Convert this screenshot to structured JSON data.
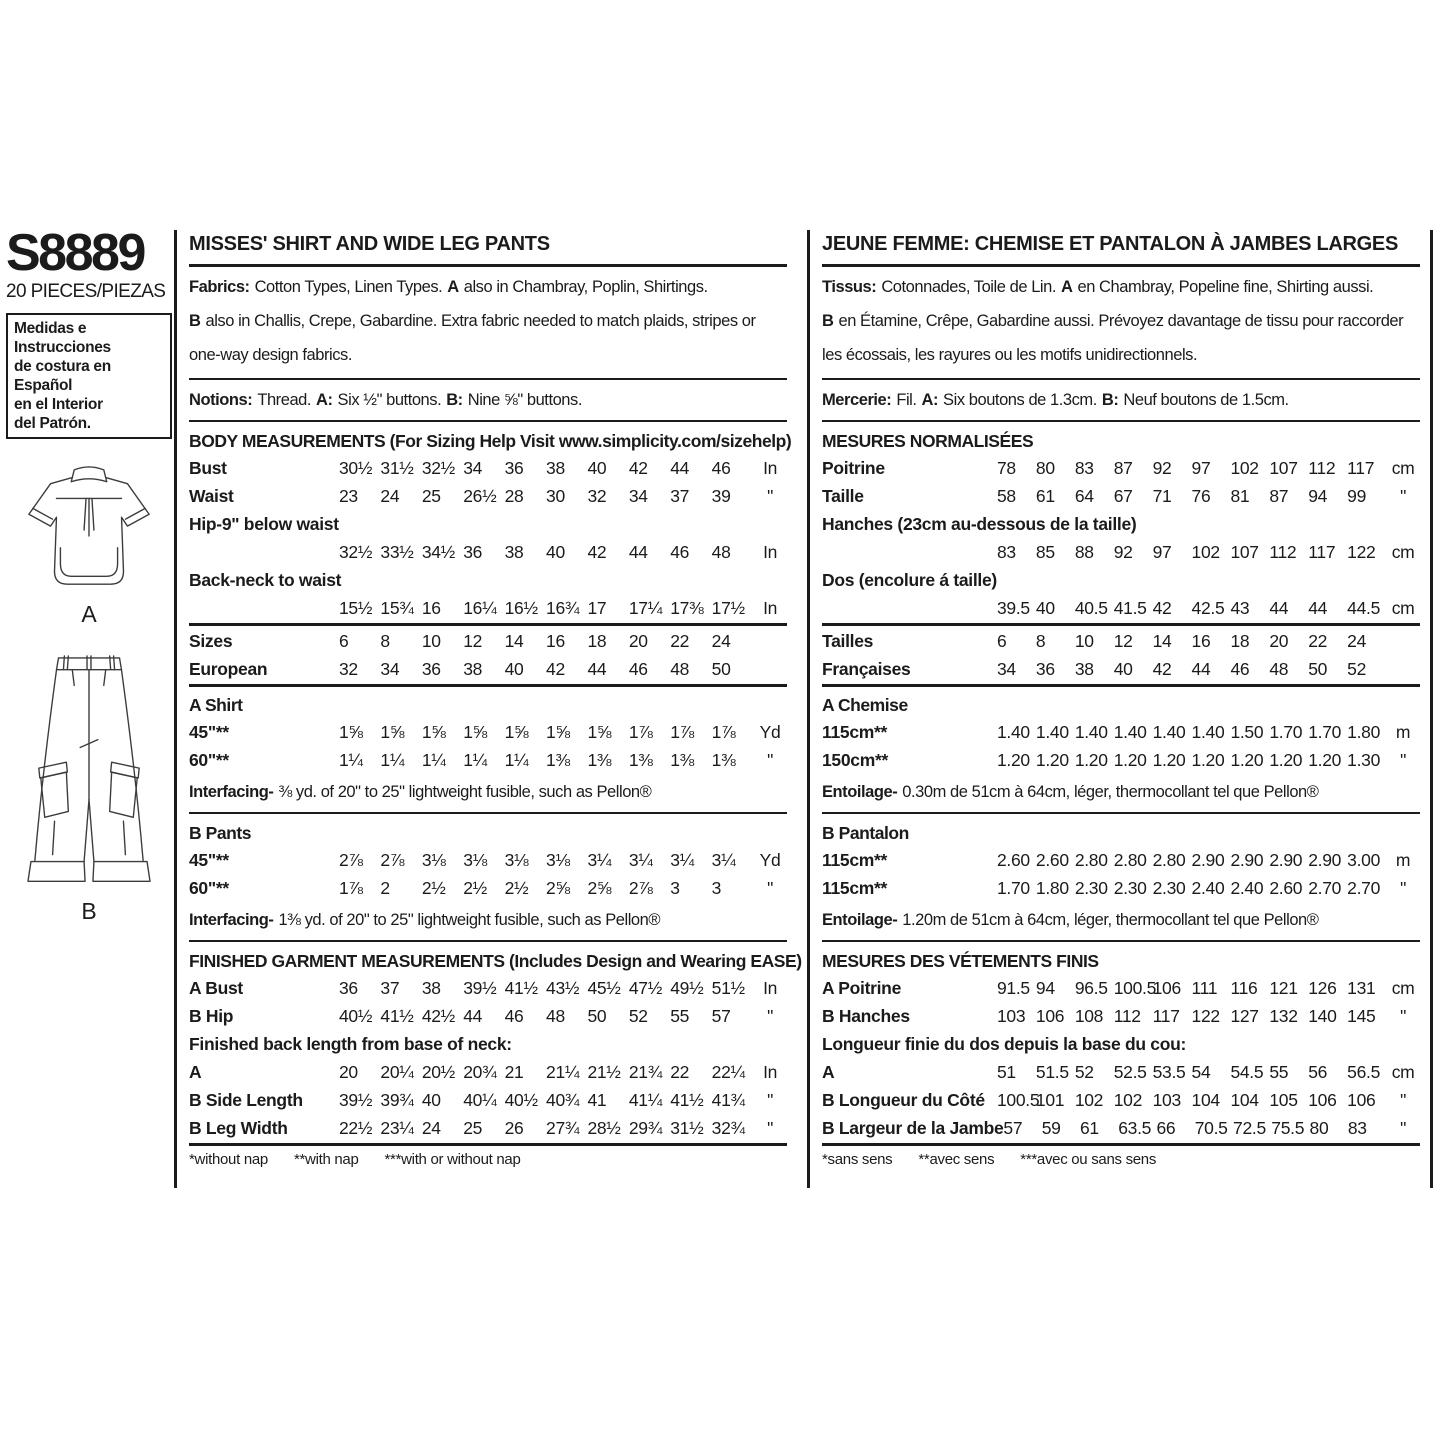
{
  "page": {
    "pattern_number": "S8889",
    "pieces": "20 PIECES/PIEZAS",
    "spanish_note_lines": [
      "Medidas e Instrucciones",
      "de costura en Español",
      "en el Interior",
      "del Patrón."
    ],
    "view_a_label": "A",
    "view_b_label": "B"
  },
  "english": {
    "title": "MISSES' SHIRT AND WIDE LEG PANTS",
    "fabrics": {
      "label": "Fabrics:",
      "text1": "Cotton Types, Linen Types.",
      "view_a": "A",
      "text2": "also in Chambray, Poplin, Shirtings.",
      "view_b": "B",
      "text3": "also in Challis, Crepe, Gabardine. Extra fabric needed to match plaids, stripes or one-way design fabrics."
    },
    "notions": {
      "label": "Notions:",
      "text1": "Thread.",
      "a_label": "A:",
      "a_text": "Six ½\" buttons.",
      "b_label": "B:",
      "b_text": "Nine ⅝\" buttons."
    },
    "body_measurements": {
      "heading": "BODY MEASUREMENTS (For Sizing Help Visit www.simplicity.com/sizehelp)",
      "rows": [
        {
          "label": "Bust",
          "values": [
            "30½",
            "31½",
            "32½",
            "34",
            "36",
            "38",
            "40",
            "42",
            "44",
            "46"
          ],
          "unit": "In"
        },
        {
          "label": "Waist",
          "values": [
            "23",
            "24",
            "25",
            "26½",
            "28",
            "30",
            "32",
            "34",
            "37",
            "39"
          ],
          "unit": "\""
        },
        {
          "label": "Hip-9\" below waist",
          "split": true,
          "values": [
            "32½",
            "33½",
            "34½",
            "36",
            "38",
            "40",
            "42",
            "44",
            "46",
            "48"
          ],
          "unit": "In"
        },
        {
          "label": "Back-neck to waist",
          "split": true,
          "values": [
            "15½",
            "15¾",
            "16",
            "16¼",
            "16½",
            "16¾",
            "17",
            "17¼",
            "17⅜",
            "17½"
          ],
          "unit": "In"
        }
      ]
    },
    "sizes": {
      "rows": [
        {
          "label": "Sizes",
          "values": [
            "6",
            "8",
            "10",
            "12",
            "14",
            "16",
            "18",
            "20",
            "22",
            "24"
          ],
          "unit": ""
        },
        {
          "label": "European",
          "values": [
            "32",
            "34",
            "36",
            "38",
            "40",
            "42",
            "44",
            "46",
            "48",
            "50"
          ],
          "unit": ""
        }
      ]
    },
    "a_shirt": {
      "heading": "A Shirt",
      "rows": [
        {
          "label": "45\"**",
          "values": [
            "1⅝",
            "1⅝",
            "1⅝",
            "1⅝",
            "1⅝",
            "1⅝",
            "1⅝",
            "1⅞",
            "1⅞",
            "1⅞"
          ],
          "unit": "Yd"
        },
        {
          "label": "60\"**",
          "values": [
            "1¼",
            "1¼",
            "1¼",
            "1¼",
            "1¼",
            "1⅜",
            "1⅜",
            "1⅜",
            "1⅜",
            "1⅜"
          ],
          "unit": "\""
        }
      ],
      "interfacing_label": "Interfacing-",
      "interfacing_text": "⅜ yd. of 20\" to 25\" lightweight fusible, such as Pellon®"
    },
    "b_pants": {
      "heading": "B Pants",
      "rows": [
        {
          "label": "45\"**",
          "values": [
            "2⅞",
            "2⅞",
            "3⅛",
            "3⅛",
            "3⅛",
            "3⅛",
            "3¼",
            "3¼",
            "3¼",
            "3¼"
          ],
          "unit": "Yd"
        },
        {
          "label": "60\"**",
          "values": [
            "1⅞",
            "2",
            "2½",
            "2½",
            "2½",
            "2⅝",
            "2⅝",
            "2⅞",
            "3",
            "3"
          ],
          "unit": "\""
        }
      ],
      "interfacing_label": "Interfacing-",
      "interfacing_text": "1⅜ yd. of 20\" to 25\" lightweight fusible, such as Pellon®"
    },
    "finished": {
      "heading": "FINISHED GARMENT MEASUREMENTS (Includes Design and Wearing EASE)",
      "rows1": [
        {
          "label": "A Bust",
          "values": [
            "36",
            "37",
            "38",
            "39½",
            "41½",
            "43½",
            "45½",
            "47½",
            "49½",
            "51½"
          ],
          "unit": "In"
        },
        {
          "label": "B Hip",
          "values": [
            "40½",
            "41½",
            "42½",
            "44",
            "46",
            "48",
            "50",
            "52",
            "55",
            "57"
          ],
          "unit": "\""
        }
      ],
      "subheading": "Finished back length from base of neck:",
      "rows2": [
        {
          "label": "A",
          "values": [
            "20",
            "20¼",
            "20½",
            "20¾",
            "21",
            "21¼",
            "21½",
            "21¾",
            "22",
            "22¼"
          ],
          "unit": "In"
        },
        {
          "label": "B Side Length",
          "values": [
            "39½",
            "39¾",
            "40",
            "40¼",
            "40½",
            "40¾",
            "41",
            "41¼",
            "41½",
            "41¾"
          ],
          "unit": "\""
        },
        {
          "label": "B Leg Width",
          "values": [
            "22½",
            "23¼",
            "24",
            "25",
            "26",
            "27¾",
            "28½",
            "29¾",
            "31½",
            "32¾"
          ],
          "unit": "\""
        }
      ]
    },
    "footnotes": [
      "*without nap",
      "**with nap",
      "***with or without nap"
    ]
  },
  "french": {
    "title": "JEUNE FEMME: CHEMISE ET PANTALON À JAMBES LARGES",
    "tissus": {
      "label": "Tissus:",
      "text1": "Cotonnades, Toile de Lin.",
      "view_a": "A",
      "text2": "en Chambray, Popeline fine, Shirting aussi.",
      "view_b": "B",
      "text3": "en Étamine, Crêpe, Gabardine aussi. Prévoyez davantage de tissu pour raccorder les écossais, les rayures ou les motifs unidirectionnels."
    },
    "mercerie": {
      "label": "Mercerie:",
      "text1": "Fil.",
      "a_label": "A:",
      "a_text": "Six boutons de 1.3cm.",
      "b_label": "B:",
      "b_text": "Neuf boutons de 1.5cm."
    },
    "mesures": {
      "heading": "MESURES NORMALISÉES",
      "rows": [
        {
          "label": "Poitrine",
          "values": [
            "78",
            "80",
            "83",
            "87",
            "92",
            "97",
            "102",
            "107",
            "112",
            "117"
          ],
          "unit": "cm"
        },
        {
          "label": "Taille",
          "values": [
            "58",
            "61",
            "64",
            "67",
            "71",
            "76",
            "81",
            "87",
            "94",
            "99"
          ],
          "unit": "\""
        },
        {
          "label": "Hanches (23cm au-dessous de la taille)",
          "split": true,
          "values": [
            "83",
            "85",
            "88",
            "92",
            "97",
            "102",
            "107",
            "112",
            "117",
            "122"
          ],
          "unit": "cm"
        },
        {
          "label": "Dos (encolure á taille)",
          "split": true,
          "values": [
            "39.5",
            "40",
            "40.5",
            "41.5",
            "42",
            "42.5",
            "43",
            "44",
            "44",
            "44.5"
          ],
          "unit": "cm"
        }
      ]
    },
    "tailles": {
      "rows": [
        {
          "label": "Tailles",
          "values": [
            "6",
            "8",
            "10",
            "12",
            "14",
            "16",
            "18",
            "20",
            "22",
            "24"
          ],
          "unit": ""
        },
        {
          "label": "Françaises",
          "values": [
            "34",
            "36",
            "38",
            "40",
            "42",
            "44",
            "46",
            "48",
            "50",
            "52"
          ],
          "unit": ""
        }
      ]
    },
    "a_chemise": {
      "heading": "A Chemise",
      "rows": [
        {
          "label": "115cm**",
          "values": [
            "1.40",
            "1.40",
            "1.40",
            "1.40",
            "1.40",
            "1.40",
            "1.50",
            "1.70",
            "1.70",
            "1.80"
          ],
          "unit": "m"
        },
        {
          "label": "150cm**",
          "values": [
            "1.20",
            "1.20",
            "1.20",
            "1.20",
            "1.20",
            "1.20",
            "1.20",
            "1.20",
            "1.20",
            "1.30"
          ],
          "unit": "\""
        }
      ],
      "entoilage_label": "Entoilage-",
      "entoilage_text": "0.30m de 51cm à 64cm, léger, thermocollant tel que Pellon®"
    },
    "b_pantalon": {
      "heading": "B Pantalon",
      "rows": [
        {
          "label": "115cm**",
          "values": [
            "2.60",
            "2.60",
            "2.80",
            "2.80",
            "2.80",
            "2.90",
            "2.90",
            "2.90",
            "2.90",
            "3.00"
          ],
          "unit": "m"
        },
        {
          "label": "115cm**",
          "values": [
            "1.70",
            "1.80",
            "2.30",
            "2.30",
            "2.30",
            "2.40",
            "2.40",
            "2.60",
            "2.70",
            "2.70"
          ],
          "unit": "\""
        }
      ],
      "entoilage_label": "Entoilage-",
      "entoilage_text": "1.20m de 51cm à 64cm, léger, thermocollant tel que Pellon®"
    },
    "finis": {
      "heading": "MESURES DES VÉTEMENTS FINIS",
      "rows1": [
        {
          "label": "A Poitrine",
          "values": [
            "91.5",
            "94",
            "96.5",
            "100.5",
            "106",
            "111",
            "116",
            "121",
            "126",
            "131"
          ],
          "unit": "cm"
        },
        {
          "label": "B Hanches",
          "values": [
            "103",
            "106",
            "108",
            "112",
            "117",
            "122",
            "127",
            "132",
            "140",
            "145"
          ],
          "unit": "\""
        }
      ],
      "subheading": "Longueur finie du dos depuis la base du cou:",
      "rows2": [
        {
          "label": "A",
          "values": [
            "51",
            "51.5",
            "52",
            "52.5",
            "53.5",
            "54",
            "54.5",
            "55",
            "56",
            "56.5"
          ],
          "unit": "cm"
        },
        {
          "label": "B Longueur du Côté",
          "values": [
            "100.5",
            "101",
            "102",
            "102",
            "103",
            "104",
            "104",
            "105",
            "106",
            "106"
          ],
          "unit": "\""
        },
        {
          "label": "B Largeur de la Jambe",
          "values": [
            "57",
            "59",
            "61",
            "63.5",
            "66",
            "70.5",
            "72.5",
            "75.5",
            "80",
            "83"
          ],
          "unit": "\""
        }
      ]
    },
    "footnotes": [
      "*sans sens",
      "**avec sens",
      "***avec ou sans sens"
    ]
  }
}
